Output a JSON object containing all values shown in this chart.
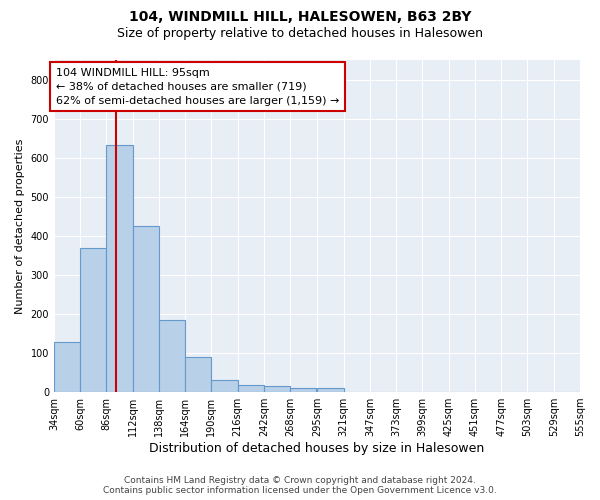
{
  "title": "104, WINDMILL HILL, HALESOWEN, B63 2BY",
  "subtitle": "Size of property relative to detached houses in Halesowen",
  "xlabel": "Distribution of detached houses by size in Halesowen",
  "ylabel": "Number of detached properties",
  "bar_heights": [
    128,
    370,
    632,
    425,
    185,
    90,
    32,
    18,
    15,
    10,
    10,
    0,
    0,
    0,
    0,
    0,
    0,
    0,
    0,
    0
  ],
  "bar_edges": [
    34,
    60,
    86,
    112,
    138,
    164,
    190,
    216,
    242,
    268,
    295,
    321,
    347,
    373,
    399,
    425,
    451,
    477,
    503,
    529,
    555
  ],
  "tick_labels": [
    "34sqm",
    "60sqm",
    "86sqm",
    "112sqm",
    "138sqm",
    "164sqm",
    "190sqm",
    "216sqm",
    "242sqm",
    "268sqm",
    "295sqm",
    "321sqm",
    "347sqm",
    "373sqm",
    "399sqm",
    "425sqm",
    "451sqm",
    "477sqm",
    "503sqm",
    "529sqm",
    "555sqm"
  ],
  "bar_color": "#b8d0e8",
  "bar_edge_color": "#6699cc",
  "vline_x": 95,
  "vline_color": "#cc0000",
  "annotation_line1": "104 WINDMILL HILL: 95sqm",
  "annotation_line2": "← 38% of detached houses are smaller (719)",
  "annotation_line3": "62% of semi-detached houses are larger (1,159) →",
  "ylim": [
    0,
    850
  ],
  "yticks": [
    0,
    100,
    200,
    300,
    400,
    500,
    600,
    700,
    800
  ],
  "background_color": "#e8eef6",
  "grid_color": "#ffffff",
  "footer_line1": "Contains HM Land Registry data © Crown copyright and database right 2024.",
  "footer_line2": "Contains public sector information licensed under the Open Government Licence v3.0.",
  "title_fontsize": 10,
  "subtitle_fontsize": 9,
  "xlabel_fontsize": 9,
  "ylabel_fontsize": 8,
  "tick_fontsize": 7,
  "annotation_fontsize": 8,
  "footer_fontsize": 6.5
}
